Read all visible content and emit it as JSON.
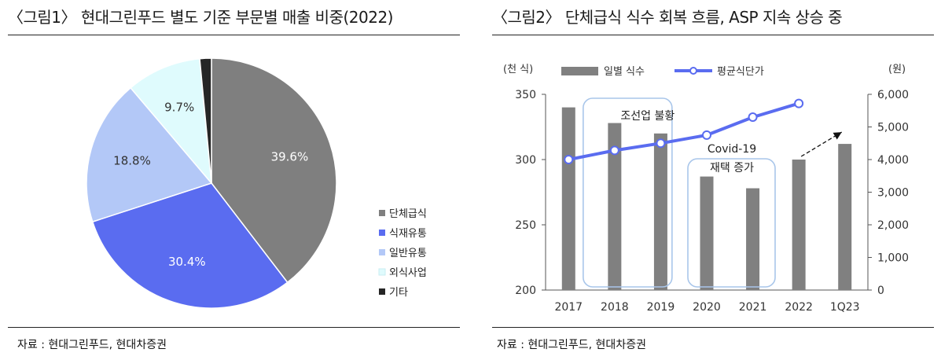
{
  "figure1": {
    "title": "〈그림1〉 현대그린푸드 별도 기준 부문별 매출 비중(2022)",
    "source": "자료 : 현대그린푸드, 현대차증권"
  },
  "figure2": {
    "title": "〈그림2〉 단체급식 식수 회복 흐름, ASP 지속 상승 중",
    "source": "자료 : 현대그린푸드, 현대차증권",
    "annotation_shipbuilding": "조선업  불황",
    "annotation_covid_line1": "Covid-19",
    "annotation_covid_line2": "재택  증가"
  },
  "chart_data": [
    {
      "type": "pie",
      "labels": [
        "단체급식",
        "식재유통",
        "일반유통",
        "외식사업",
        "기타"
      ],
      "values": [
        39.6,
        30.4,
        18.8,
        9.7,
        1.5
      ],
      "data_labels": [
        "39.6%",
        "30.4%",
        "18.8%",
        "9.7%",
        ""
      ],
      "colors": [
        "#7f7f7f",
        "#5a6cf0",
        "#b3c8f7",
        "#dffbfd",
        "#262626"
      ],
      "legend_position": "right-bottom"
    },
    {
      "type": "bar",
      "categories": [
        "2017",
        "2018",
        "2019",
        "2020",
        "2021",
        "2022",
        "1Q23"
      ],
      "series": [
        {
          "name": "일별 식수",
          "type": "bar",
          "axis": "left",
          "values": [
            340,
            328,
            320,
            287,
            278,
            300,
            312
          ],
          "color": "#808080"
        },
        {
          "name": "평균식단가",
          "type": "line",
          "axis": "right",
          "values": [
            4000,
            4280,
            4500,
            4750,
            5300,
            5720,
            null
          ],
          "color": "#5a6cf0"
        }
      ],
      "y_left": {
        "label": "(천 식)",
        "ylim": [
          200,
          350
        ],
        "ticks": [
          "200",
          "250",
          "300",
          "350"
        ]
      },
      "y_right": {
        "label": "(원)",
        "ylim": [
          0,
          6000
        ],
        "ticks": [
          "0",
          "1,000",
          "2,000",
          "3,000",
          "4,000",
          "5,000",
          "6,000"
        ]
      },
      "legend_position": "top",
      "grid": false
    }
  ]
}
